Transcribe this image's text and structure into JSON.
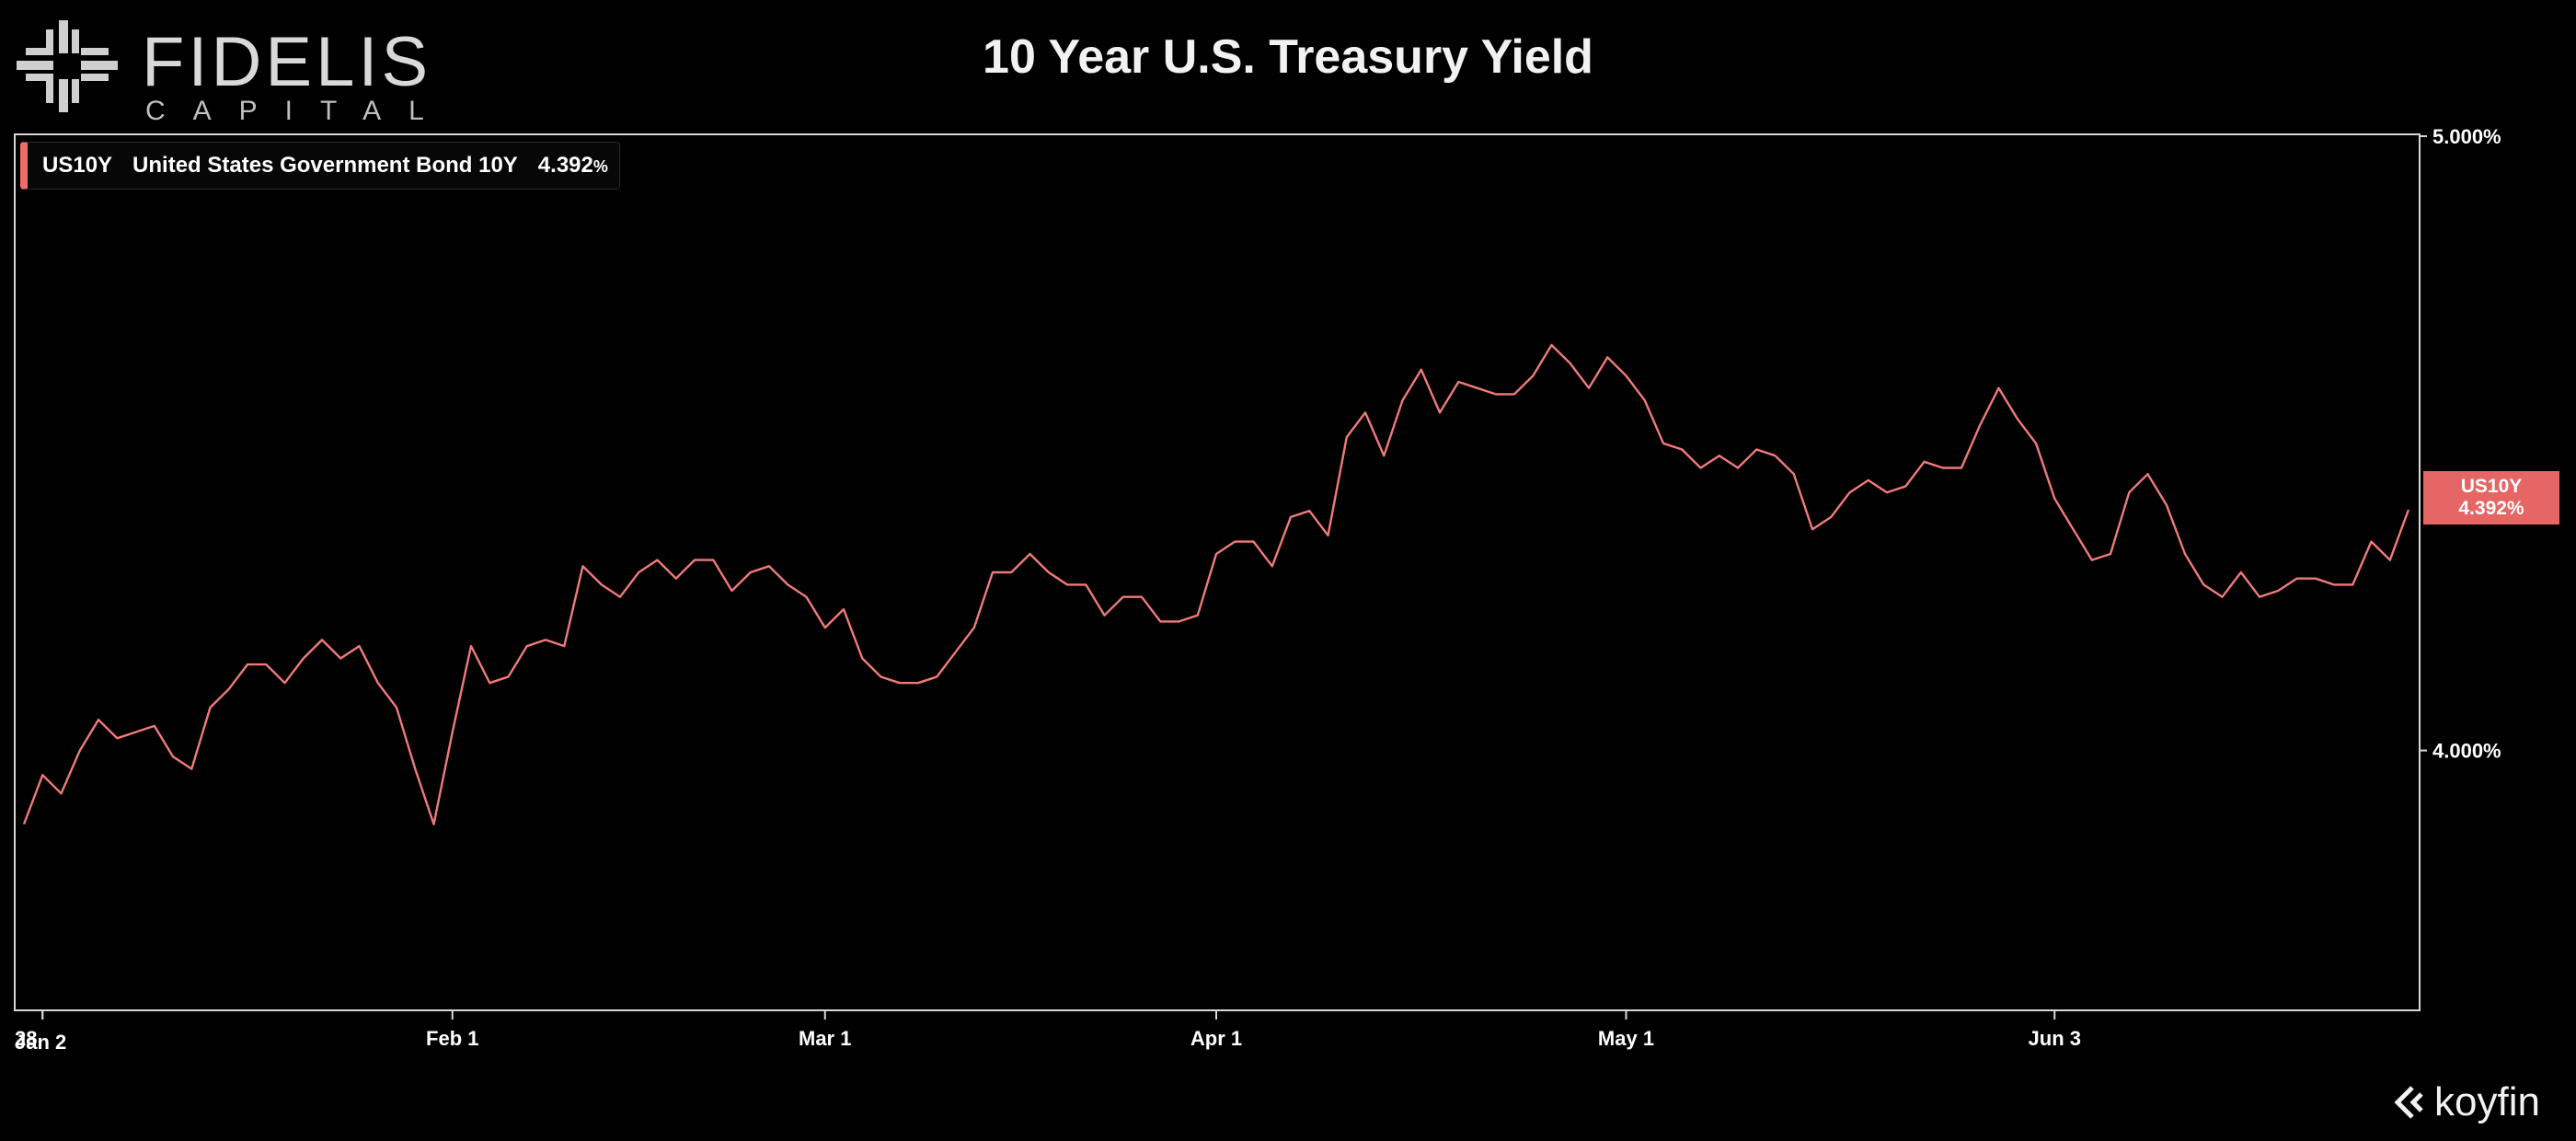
{
  "brand": {
    "name": "FIDELIS",
    "sub": "CAPITAL",
    "watermark": "koyfin"
  },
  "title": "10 Year U.S. Treasury Yield",
  "legend": {
    "ticker": "US10Y",
    "name": "United States Government Bond 10Y",
    "value": "4.392",
    "unit": "%"
  },
  "last_tag": {
    "ticker": "US10Y",
    "value": "4.392%"
  },
  "colors": {
    "line": "#f07a7a",
    "tag": "#e66565",
    "background": "#000000",
    "frame": "#d8d8d8"
  },
  "chart_data": {
    "type": "line",
    "title": "10 Year U.S. Treasury Yield",
    "xlabel": "",
    "ylabel": "",
    "ylim": [
      3.58,
      5.0
    ],
    "y_ticks": [
      {
        "value": 5.0,
        "label": "5.000%"
      },
      {
        "value": 4.0,
        "label": "4.000%"
      }
    ],
    "x_ticks": [
      {
        "index": 1,
        "label": "28"
      },
      {
        "index": 1,
        "label": "Jan 2"
      },
      {
        "index": 23,
        "label": "Feb 1"
      },
      {
        "index": 43,
        "label": "Mar 1"
      },
      {
        "index": 64,
        "label": "Apr 1"
      },
      {
        "index": 86,
        "label": "May 1"
      },
      {
        "index": 109,
        "label": "Jun 3"
      }
    ],
    "series": [
      {
        "name": "US10Y",
        "last_value": 4.392,
        "values": [
          3.88,
          3.96,
          3.93,
          4.0,
          4.05,
          4.02,
          4.03,
          4.04,
          3.99,
          3.97,
          4.07,
          4.1,
          4.14,
          4.14,
          4.11,
          4.15,
          4.18,
          4.15,
          4.17,
          4.11,
          4.07,
          3.97,
          3.88,
          4.03,
          4.17,
          4.11,
          4.12,
          4.17,
          4.18,
          4.17,
          4.3,
          4.27,
          4.25,
          4.29,
          4.31,
          4.28,
          4.31,
          4.31,
          4.26,
          4.29,
          4.3,
          4.27,
          4.25,
          4.2,
          4.23,
          4.15,
          4.12,
          4.11,
          4.11,
          4.12,
          4.16,
          4.2,
          4.29,
          4.29,
          4.32,
          4.29,
          4.27,
          4.27,
          4.22,
          4.25,
          4.25,
          4.21,
          4.21,
          4.22,
          4.32,
          4.34,
          4.34,
          4.3,
          4.38,
          4.39,
          4.35,
          4.51,
          4.55,
          4.48,
          4.57,
          4.62,
          4.55,
          4.6,
          4.59,
          4.58,
          4.58,
          4.61,
          4.66,
          4.63,
          4.59,
          4.64,
          4.61,
          4.57,
          4.5,
          4.49,
          4.46,
          4.48,
          4.46,
          4.49,
          4.48,
          4.45,
          4.36,
          4.38,
          4.42,
          4.44,
          4.42,
          4.43,
          4.47,
          4.46,
          4.46,
          4.53,
          4.59,
          4.54,
          4.5,
          4.41,
          4.36,
          4.31,
          4.32,
          4.42,
          4.45,
          4.4,
          4.32,
          4.27,
          4.25,
          4.29,
          4.25,
          4.26,
          4.28,
          4.28,
          4.27,
          4.27,
          4.34,
          4.31,
          4.392
        ]
      }
    ]
  }
}
